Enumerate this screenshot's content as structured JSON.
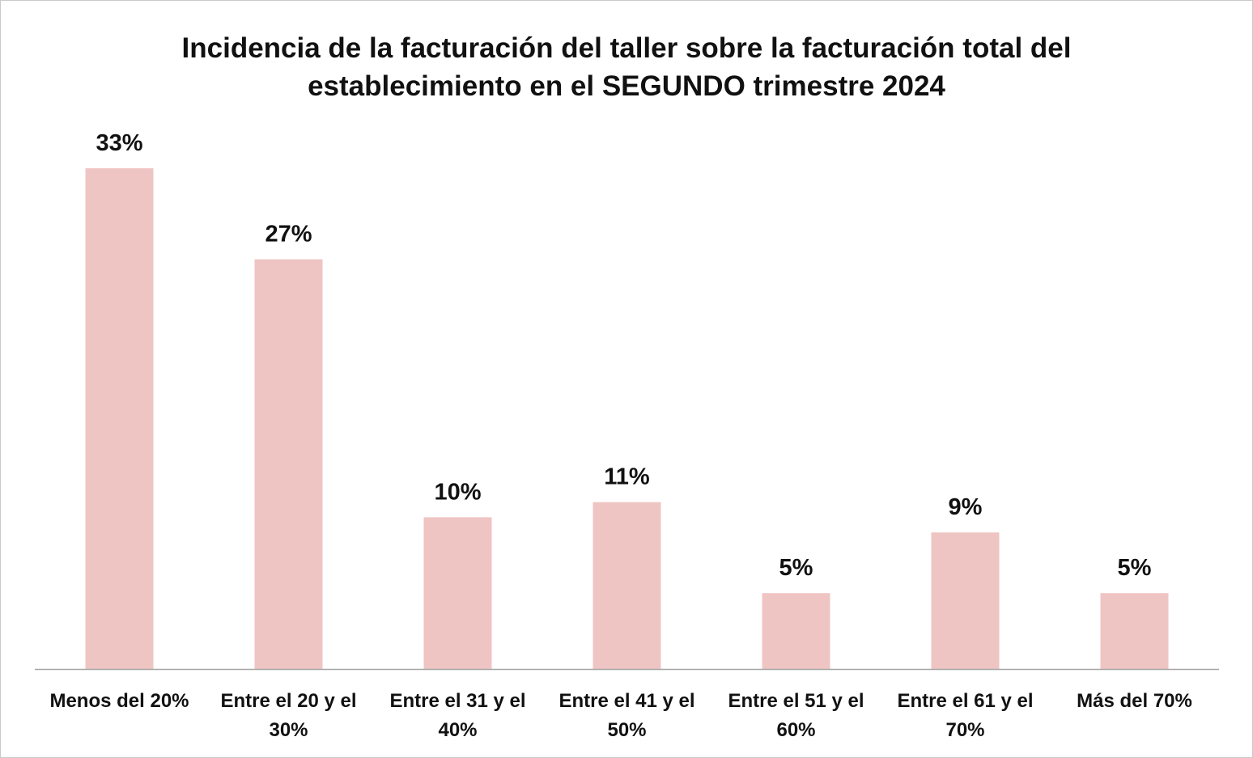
{
  "chart_data": {
    "type": "bar",
    "title_lines": [
      "Incidencia de la facturación del taller sobre la facturación total del",
      "establecimiento en el SEGUNDO trimestre 2024"
    ],
    "categories": [
      [
        "Menos del 20%"
      ],
      [
        "Entre el 20 y el",
        "30%"
      ],
      [
        "Entre el 31 y el",
        "40%"
      ],
      [
        "Entre el 41 y el",
        "50%"
      ],
      [
        "Entre el 51 y el",
        "60%"
      ],
      [
        "Entre el 61 y el",
        "70%"
      ],
      [
        "Más del 70%"
      ]
    ],
    "values": [
      33,
      27,
      10,
      11,
      5,
      9,
      5
    ],
    "value_labels": [
      "33%",
      "27%",
      "10%",
      "11%",
      "5%",
      "9%",
      "5%"
    ],
    "ylim": [
      0,
      33
    ],
    "grid": false,
    "legend": "none",
    "bar_color": "#efc5c3",
    "axis_color": "#a6a6a6"
  }
}
